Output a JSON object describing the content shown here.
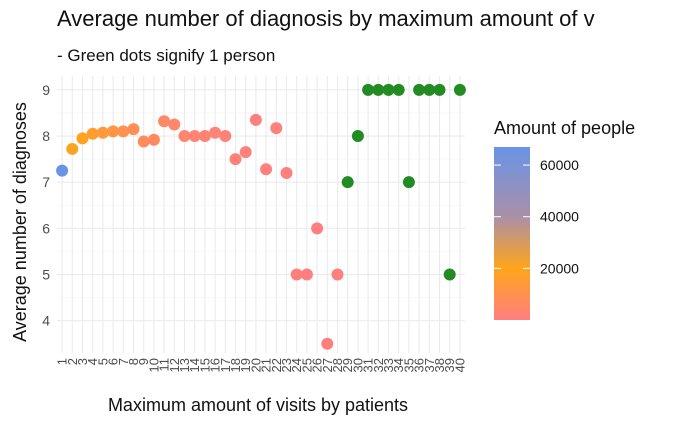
{
  "chart_data": {
    "type": "scatter",
    "title": "Average number of diagnosis by maximum amount of v",
    "subtitle": "- Green dots signify 1 person",
    "xlabel": "Maximum amount of visits by patients",
    "ylabel": "Average number of diagnoses",
    "x_ticks": [
      "1",
      "2",
      "3",
      "4",
      "5",
      "6",
      "7",
      "8",
      "9",
      "10",
      "11",
      "12",
      "13",
      "14",
      "15",
      "16",
      "17",
      "18",
      "19",
      "20",
      "21",
      "22",
      "23",
      "24",
      "25",
      "26",
      "27",
      "28",
      "29",
      "30",
      "31",
      "32",
      "33",
      "34",
      "35",
      "36",
      "37",
      "38",
      "39",
      "40"
    ],
    "y_ticks": [
      4,
      5,
      6,
      7,
      8,
      9
    ],
    "xlim": [
      0.5,
      40.5
    ],
    "ylim": [
      3.3,
      9.3
    ],
    "grid": true,
    "legend": {
      "title": "Amount of people",
      "placement": "right",
      "labels": [
        "60000",
        "40000",
        "20000"
      ],
      "label_values": [
        60000,
        40000,
        20000
      ],
      "range": [
        1,
        67000
      ],
      "colors": [
        "#6a93e6",
        "#a98fa8",
        "#ffa51c",
        "#ff7f7f"
      ]
    },
    "single_person_color": "#228b22",
    "points": [
      {
        "x": 1,
        "y": 7.25,
        "n": 67000
      },
      {
        "x": 2,
        "y": 7.72,
        "n": 21000
      },
      {
        "x": 3,
        "y": 7.95,
        "n": 19000
      },
      {
        "x": 4,
        "y": 8.05,
        "n": 16500
      },
      {
        "x": 5,
        "y": 8.07,
        "n": 14000
      },
      {
        "x": 6,
        "y": 8.1,
        "n": 12000
      },
      {
        "x": 7,
        "y": 8.1,
        "n": 10000
      },
      {
        "x": 8,
        "y": 8.15,
        "n": 8500
      },
      {
        "x": 9,
        "y": 7.88,
        "n": 7000
      },
      {
        "x": 10,
        "y": 7.92,
        "n": 6000
      },
      {
        "x": 11,
        "y": 8.32,
        "n": 5000
      },
      {
        "x": 12,
        "y": 8.25,
        "n": 4000
      },
      {
        "x": 13,
        "y": 8.0,
        "n": 3300
      },
      {
        "x": 14,
        "y": 8.0,
        "n": 2800
      },
      {
        "x": 15,
        "y": 8.0,
        "n": 2300
      },
      {
        "x": 16,
        "y": 8.07,
        "n": 1900
      },
      {
        "x": 17,
        "y": 8.0,
        "n": 1500
      },
      {
        "x": 18,
        "y": 7.5,
        "n": 1200
      },
      {
        "x": 19,
        "y": 7.65,
        "n": 900
      },
      {
        "x": 20,
        "y": 8.35,
        "n": 700
      },
      {
        "x": 21,
        "y": 7.28,
        "n": 500
      },
      {
        "x": 22,
        "y": 8.17,
        "n": 350
      },
      {
        "x": 23,
        "y": 7.2,
        "n": 250
      },
      {
        "x": 24,
        "y": 5.0,
        "n": 150
      },
      {
        "x": 25,
        "y": 5.0,
        "n": 100
      },
      {
        "x": 26,
        "y": 6.0,
        "n": 60
      },
      {
        "x": 27,
        "y": 3.5,
        "n": 30
      },
      {
        "x": 28,
        "y": 5.0,
        "n": 15
      },
      {
        "x": 29,
        "y": 7.0,
        "n": 1
      },
      {
        "x": 30,
        "y": 8.0,
        "n": 1
      },
      {
        "x": 31,
        "y": 9.0,
        "n": 1
      },
      {
        "x": 32,
        "y": 9.0,
        "n": 1
      },
      {
        "x": 33,
        "y": 9.0,
        "n": 1
      },
      {
        "x": 34,
        "y": 9.0,
        "n": 1
      },
      {
        "x": 35,
        "y": 7.0,
        "n": 1
      },
      {
        "x": 36,
        "y": 9.0,
        "n": 1
      },
      {
        "x": 37,
        "y": 9.0,
        "n": 1
      },
      {
        "x": 38,
        "y": 9.0,
        "n": 1
      },
      {
        "x": 39,
        "y": 5.0,
        "n": 1
      },
      {
        "x": 40,
        "y": 9.0,
        "n": 1
      }
    ]
  }
}
